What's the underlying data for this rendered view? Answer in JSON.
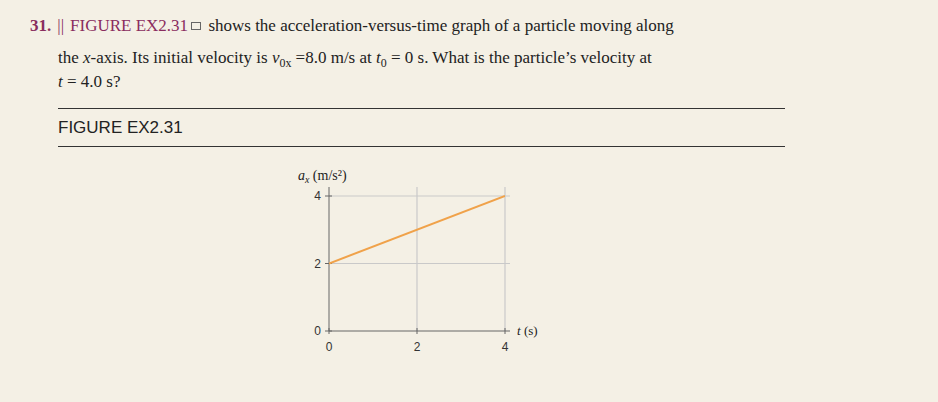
{
  "problem": {
    "number": "31.",
    "difficulty": "||",
    "lines": [
      [
        {
          "text": "FIGURE EX2.31",
          "style": "link"
        },
        {
          "text": " shows the acceleration-versus-time graph of a particle moving along",
          "style": "plain"
        }
      ],
      [
        {
          "text": "the ",
          "style": "plain"
        },
        {
          "text": "x",
          "style": "italic"
        },
        {
          "text": "-axis. Its initial velocity is ",
          "style": "plain"
        },
        {
          "text": "v",
          "style": "italic"
        },
        {
          "text": "0x",
          "style": "sub"
        },
        {
          "text": " =8.0 m/s at ",
          "style": "plain"
        },
        {
          "text": "t",
          "style": "italic"
        },
        {
          "text": "0",
          "style": "sub"
        },
        {
          "text": " = 0 s. What is the particle’s velocity at",
          "style": "plain"
        }
      ],
      [
        {
          "text": "t",
          "style": "italic"
        },
        {
          "text": " = 4.0 s?",
          "style": "plain"
        }
      ]
    ]
  },
  "figure_label": "FIGURE EX2.31",
  "chart_data": {
    "type": "line",
    "x": [
      0,
      4
    ],
    "values": [
      2,
      4
    ],
    "color": "#f0a24a",
    "xlim": [
      0,
      4
    ],
    "ylim": [
      0,
      4
    ],
    "xticks": [
      0,
      2,
      4
    ],
    "yticks": [
      0,
      2,
      4
    ],
    "grid": true,
    "y_label": [
      {
        "text": "a",
        "style": "italic"
      },
      {
        "text": "x",
        "style": "sub"
      },
      {
        "text": " (m/s²)",
        "style": "plain"
      }
    ],
    "x_label": [
      {
        "text": "t",
        "style": "italic"
      },
      {
        "text": " (s)",
        "style": "plain"
      }
    ]
  }
}
